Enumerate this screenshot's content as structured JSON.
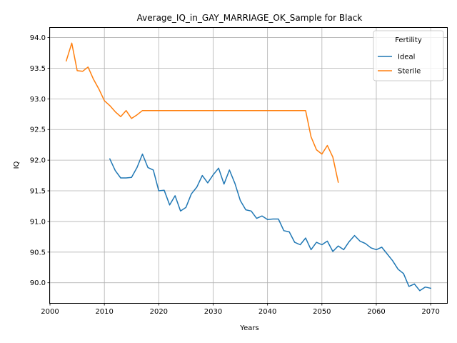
{
  "chart_data": {
    "type": "line",
    "title": "Average_IQ_in_GAY_MARRIAGE_OK_Sample for Black",
    "xlabel": "Years",
    "ylabel": "IQ",
    "xlim": [
      2000,
      2073
    ],
    "ylim": [
      89.67,
      94.17
    ],
    "xticks": [
      2000,
      2010,
      2020,
      2030,
      2040,
      2050,
      2060,
      2070
    ],
    "xtick_labels": [
      "2000",
      "2010",
      "2020",
      "2030",
      "2040",
      "2050",
      "2060",
      "2070"
    ],
    "yticks": [
      90.0,
      90.5,
      91.0,
      91.5,
      92.0,
      92.5,
      93.0,
      93.5,
      94.0
    ],
    "ytick_labels": [
      "90.0",
      "90.5",
      "91.0",
      "91.5",
      "92.0",
      "92.5",
      "93.0",
      "93.5",
      "94.0"
    ],
    "grid": true,
    "legend": {
      "title": "Fertility",
      "position": "top-right"
    },
    "series": [
      {
        "name": "Ideal",
        "color": "#1f77b4",
        "x": [
          2011,
          2012,
          2013,
          2014,
          2015,
          2016,
          2017,
          2018,
          2019,
          2020,
          2021,
          2022,
          2023,
          2024,
          2025,
          2026,
          2027,
          2028,
          2029,
          2030,
          2031,
          2032,
          2033,
          2034,
          2035,
          2036,
          2037,
          2038,
          2039,
          2040,
          2041,
          2042,
          2043,
          2044,
          2045,
          2046,
          2047,
          2048,
          2049,
          2050,
          2051,
          2052,
          2053,
          2054,
          2055,
          2056,
          2057,
          2058,
          2059,
          2060,
          2061,
          2062,
          2063,
          2064,
          2065,
          2066,
          2067,
          2068,
          2069,
          2070
        ],
        "values": [
          92.02,
          91.83,
          91.71,
          91.71,
          91.72,
          91.88,
          92.1,
          91.88,
          91.84,
          91.5,
          91.51,
          91.27,
          91.42,
          91.17,
          91.23,
          91.45,
          91.56,
          91.75,
          91.63,
          91.76,
          91.87,
          91.61,
          91.84,
          91.62,
          91.34,
          91.19,
          91.17,
          91.05,
          91.09,
          91.03,
          91.04,
          91.04,
          90.85,
          90.83,
          90.66,
          90.62,
          90.73,
          90.54,
          90.66,
          90.62,
          90.68,
          90.51,
          90.6,
          90.54,
          90.67,
          90.77,
          90.68,
          90.64,
          90.57,
          90.54,
          90.58,
          90.47,
          90.36,
          90.22,
          90.15,
          89.94,
          89.98,
          89.87,
          89.93,
          89.91
        ]
      },
      {
        "name": "Sterile",
        "color": "#ff7f0e",
        "x": [
          2003,
          2004,
          2005,
          2006,
          2007,
          2008,
          2009,
          2010,
          2011,
          2012,
          2013,
          2014,
          2015,
          2016,
          2017,
          2018,
          2019,
          2020,
          2021,
          2022,
          2023,
          2024,
          2025,
          2026,
          2027,
          2028,
          2029,
          2030,
          2031,
          2032,
          2033,
          2034,
          2035,
          2036,
          2037,
          2038,
          2039,
          2040,
          2041,
          2042,
          2043,
          2044,
          2045,
          2046,
          2047,
          2048,
          2049,
          2050,
          2051,
          2052,
          2053
        ],
        "values": [
          93.62,
          93.91,
          93.46,
          93.45,
          93.52,
          93.32,
          93.16,
          92.97,
          92.89,
          92.79,
          92.71,
          92.81,
          92.68,
          92.74,
          92.81,
          92.81,
          92.81,
          92.81,
          92.81,
          92.81,
          92.81,
          92.81,
          92.81,
          92.81,
          92.81,
          92.81,
          92.81,
          92.81,
          92.81,
          92.81,
          92.81,
          92.81,
          92.81,
          92.81,
          92.81,
          92.81,
          92.81,
          92.81,
          92.81,
          92.81,
          92.81,
          92.81,
          92.81,
          92.81,
          92.81,
          92.38,
          92.17,
          92.1,
          92.24,
          92.05,
          91.64
        ]
      }
    ]
  }
}
